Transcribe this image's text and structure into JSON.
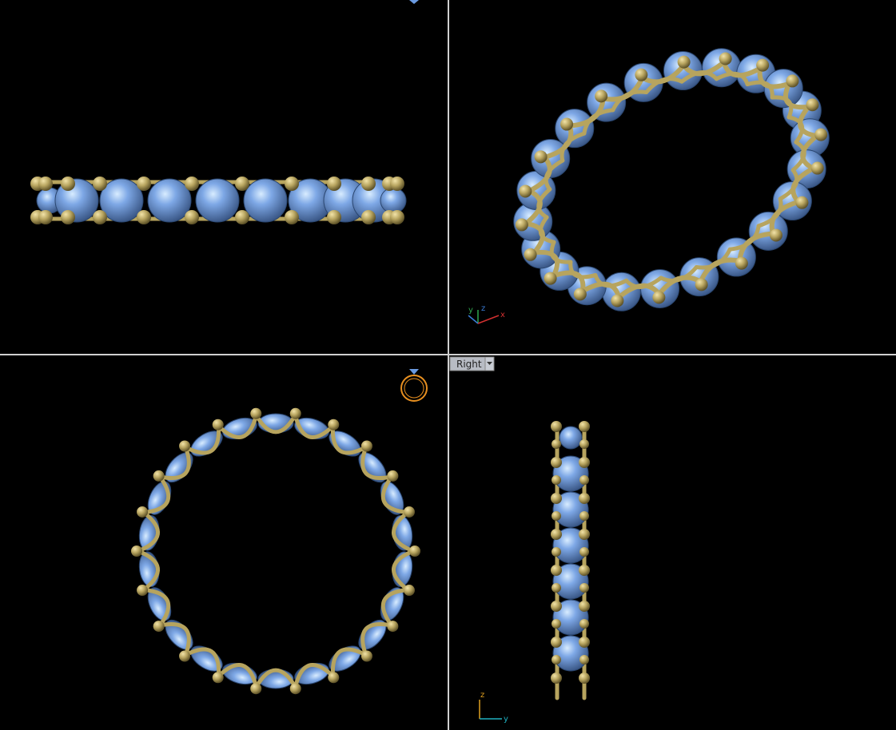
{
  "viewports": {
    "perspective": {
      "axis_labels": [
        "y",
        "z",
        "x"
      ]
    },
    "right": {
      "label": "Right",
      "axis_labels": [
        "z",
        "y"
      ]
    }
  }
}
